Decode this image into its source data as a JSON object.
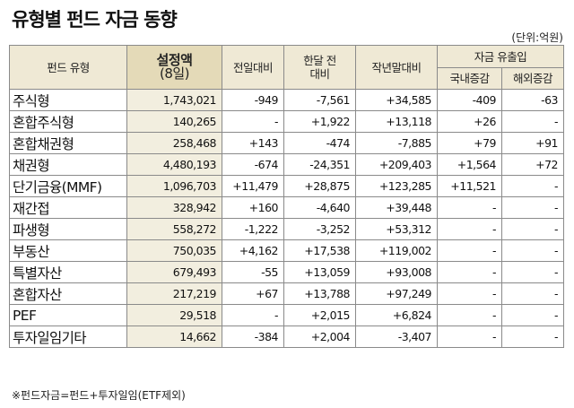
{
  "title": "유형별 펀드 자금 동향",
  "unit": "(단위:억원)",
  "headers": {
    "type": "펀드 유형",
    "nav_line1": "설정액",
    "nav_line2": "(8일)",
    "prev_day": "전일대비",
    "month_ago_line1": "한달 전",
    "month_ago_line2": "대비",
    "year_end": "작년말대비",
    "flow_group": "자금 유출입",
    "domestic": "국내증감",
    "overseas": "해외증감"
  },
  "rows": [
    {
      "name": "주식형",
      "nav": "1,743,021",
      "prev_day": "-949",
      "month_ago": "-7,561",
      "year_end": "+34,585",
      "domestic": "-409",
      "overseas": "-63"
    },
    {
      "name": "혼합주식형",
      "nav": "140,265",
      "prev_day": "-",
      "month_ago": "+1,922",
      "year_end": "+13,118",
      "domestic": "+26",
      "overseas": "-"
    },
    {
      "name": "혼합채권형",
      "nav": "258,468",
      "prev_day": "+143",
      "month_ago": "-474",
      "year_end": "-7,885",
      "domestic": "+79",
      "overseas": "+91"
    },
    {
      "name": "채권형",
      "nav": "4,480,193",
      "prev_day": "-674",
      "month_ago": "-24,351",
      "year_end": "+209,403",
      "domestic": "+1,564",
      "overseas": "+72"
    },
    {
      "name": "단기금융(MMF)",
      "nav": "1,096,703",
      "prev_day": "+11,479",
      "month_ago": "+28,875",
      "year_end": "+123,285",
      "domestic": "+11,521",
      "overseas": "-"
    },
    {
      "name": "재간접",
      "nav": "328,942",
      "prev_day": "+160",
      "month_ago": "-4,640",
      "year_end": "+39,448",
      "domestic": "-",
      "overseas": "-"
    },
    {
      "name": "파생형",
      "nav": "558,272",
      "prev_day": "-1,222",
      "month_ago": "-3,252",
      "year_end": "+53,312",
      "domestic": "-",
      "overseas": "-"
    },
    {
      "name": "부동산",
      "nav": "750,035",
      "prev_day": "+4,162",
      "month_ago": "+17,538",
      "year_end": "+119,002",
      "domestic": "-",
      "overseas": "-"
    },
    {
      "name": "특별자산",
      "nav": "679,493",
      "prev_day": "-55",
      "month_ago": "+13,059",
      "year_end": "+93,008",
      "domestic": "-",
      "overseas": "-"
    },
    {
      "name": "혼합자산",
      "nav": "217,219",
      "prev_day": "+67",
      "month_ago": "+13,788",
      "year_end": "+97,249",
      "domestic": "-",
      "overseas": "-"
    },
    {
      "name": "PEF",
      "nav": "29,518",
      "prev_day": "-",
      "month_ago": "+2,015",
      "year_end": "+6,824",
      "domestic": "-",
      "overseas": "-"
    },
    {
      "name": "투자일임기타",
      "nav": "14,662",
      "prev_day": "-384",
      "month_ago": "+2,004",
      "year_end": "-3,407",
      "domestic": "-",
      "overseas": "-"
    }
  ],
  "footnote": "※펀드자금=펀드+투자일임(ETF제외)"
}
